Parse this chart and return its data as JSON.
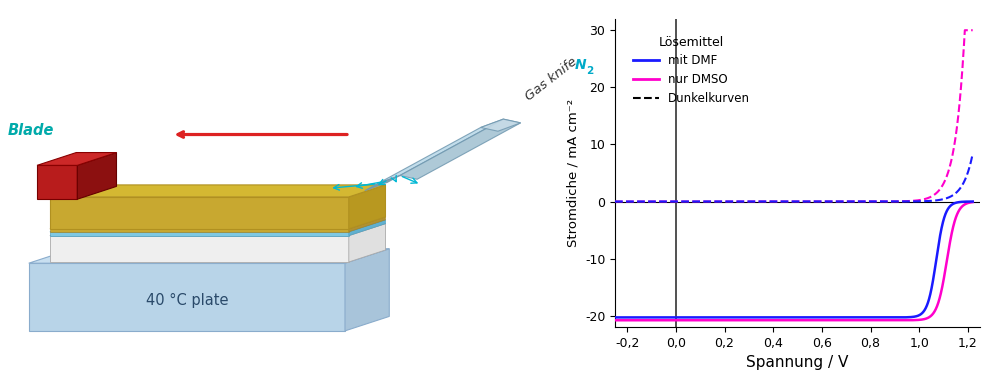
{
  "fig_width": 10.0,
  "fig_height": 3.76,
  "dpi": 100,
  "plot": {
    "xlim": [
      -0.25,
      1.25
    ],
    "ylim": [
      -22,
      32
    ],
    "xticks": [
      -0.2,
      0.0,
      0.2,
      0.4,
      0.6,
      0.8,
      1.0,
      1.2
    ],
    "yticks": [
      -20,
      -10,
      0,
      10,
      20,
      30
    ],
    "xlabel": "Spannung / V",
    "ylabel": "Stromdiche / mA cm⁻²",
    "legend_title": "Lösemittel",
    "line_color_dmf": "#1a1aff",
    "line_color_dmso": "#ff00cc",
    "jsc_dmf": -20.3,
    "jsc_dmso": -20.8,
    "voc_dmf": 1.115,
    "voc_dmso": 1.16
  },
  "schematic": {
    "plate_color": "#b8d4e8",
    "plate_edge": "#8aaccc",
    "plate_top_color": "#c8dff0",
    "substrate_white": "#f5f5f5",
    "substrate_edge": "#cccccc",
    "layer_blue": "#7ec8e3",
    "layer_gold_thin": "#c8a830",
    "film_color": "#d4b832",
    "film_edge": "#b09020",
    "blade_front": "#b81c1c",
    "blade_side": "#8c1010",
    "blade_top": "#cc2828",
    "gk_body": "#b8d8e8",
    "gk_edge": "#7098b0",
    "gk_tip": "#8098a8",
    "arrow_green": "#00b890",
    "arrow_red": "#dd2222",
    "arrow_blue": "#00b8d4",
    "text_blade": "#00aaaa",
    "text_plate": "#2a4a6a",
    "text_gk": "#333333",
    "text_n2": "#00aac8"
  }
}
